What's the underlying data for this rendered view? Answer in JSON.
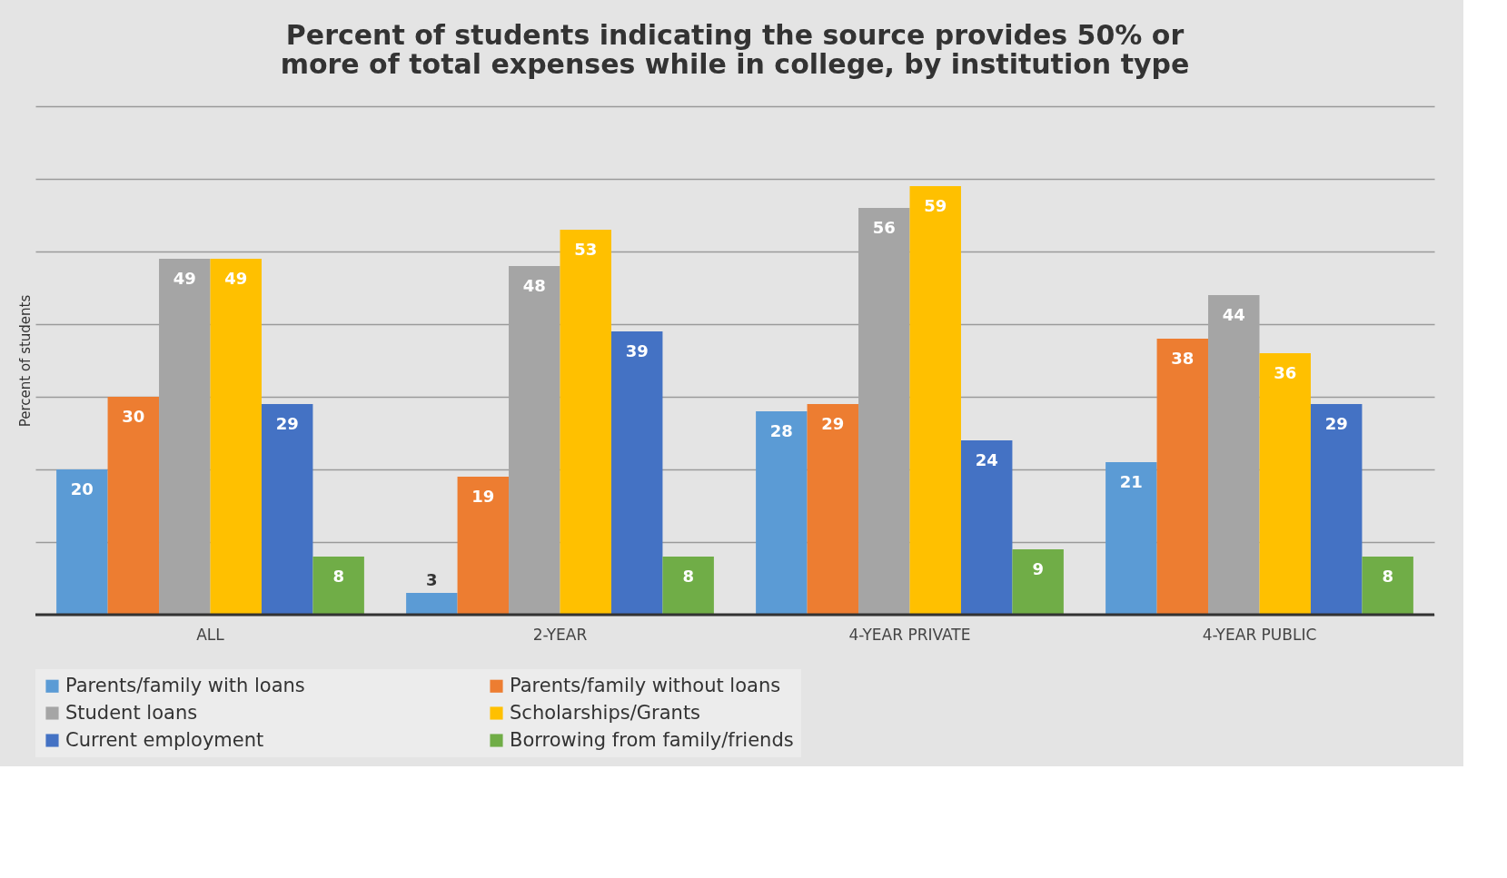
{
  "chart_data": {
    "type": "bar",
    "title": [
      "Percent of students indicating the source provides 50% or",
      "more of total expenses while in college,  by institution type"
    ],
    "ylabel": "Percent of students",
    "categories": [
      "ALL",
      "2-YEAR",
      "4-YEAR PRIVATE",
      "4-YEAR PUBLIC"
    ],
    "series": [
      {
        "name": "Parents/family with loans",
        "color": "#5b9bd5",
        "values": [
          20,
          3,
          28,
          21
        ]
      },
      {
        "name": "Parents/family without loans",
        "color": "#ed7d31",
        "values": [
          30,
          19,
          29,
          38
        ]
      },
      {
        "name": "Student loans",
        "color": "#a5a5a5",
        "values": [
          49,
          48,
          56,
          44
        ]
      },
      {
        "name": "Scholarships/Grants",
        "color": "#ffc000",
        "values": [
          49,
          53,
          59,
          36
        ]
      },
      {
        "name": "Current employment",
        "color": "#4472c4",
        "values": [
          29,
          39,
          24,
          29
        ]
      },
      {
        "name": "Borrowing from family/friends",
        "color": "#70ad47",
        "values": [
          8,
          8,
          9,
          8
        ]
      }
    ],
    "ylim": [
      0,
      70
    ],
    "yticks": [
      {
        "value": 0,
        "label": null
      },
      {
        "value": 10,
        "label": null
      },
      {
        "value": 20,
        "label": null
      },
      {
        "value": 30,
        "label": null
      },
      {
        "value": 40,
        "label": null
      },
      {
        "value": 50,
        "label": null
      },
      {
        "value": 60,
        "label": null
      },
      {
        "value": 70,
        "label": null
      }
    ],
    "tick_labels": "x",
    "grid": "y",
    "legend": "bottom",
    "data_labels": true
  }
}
